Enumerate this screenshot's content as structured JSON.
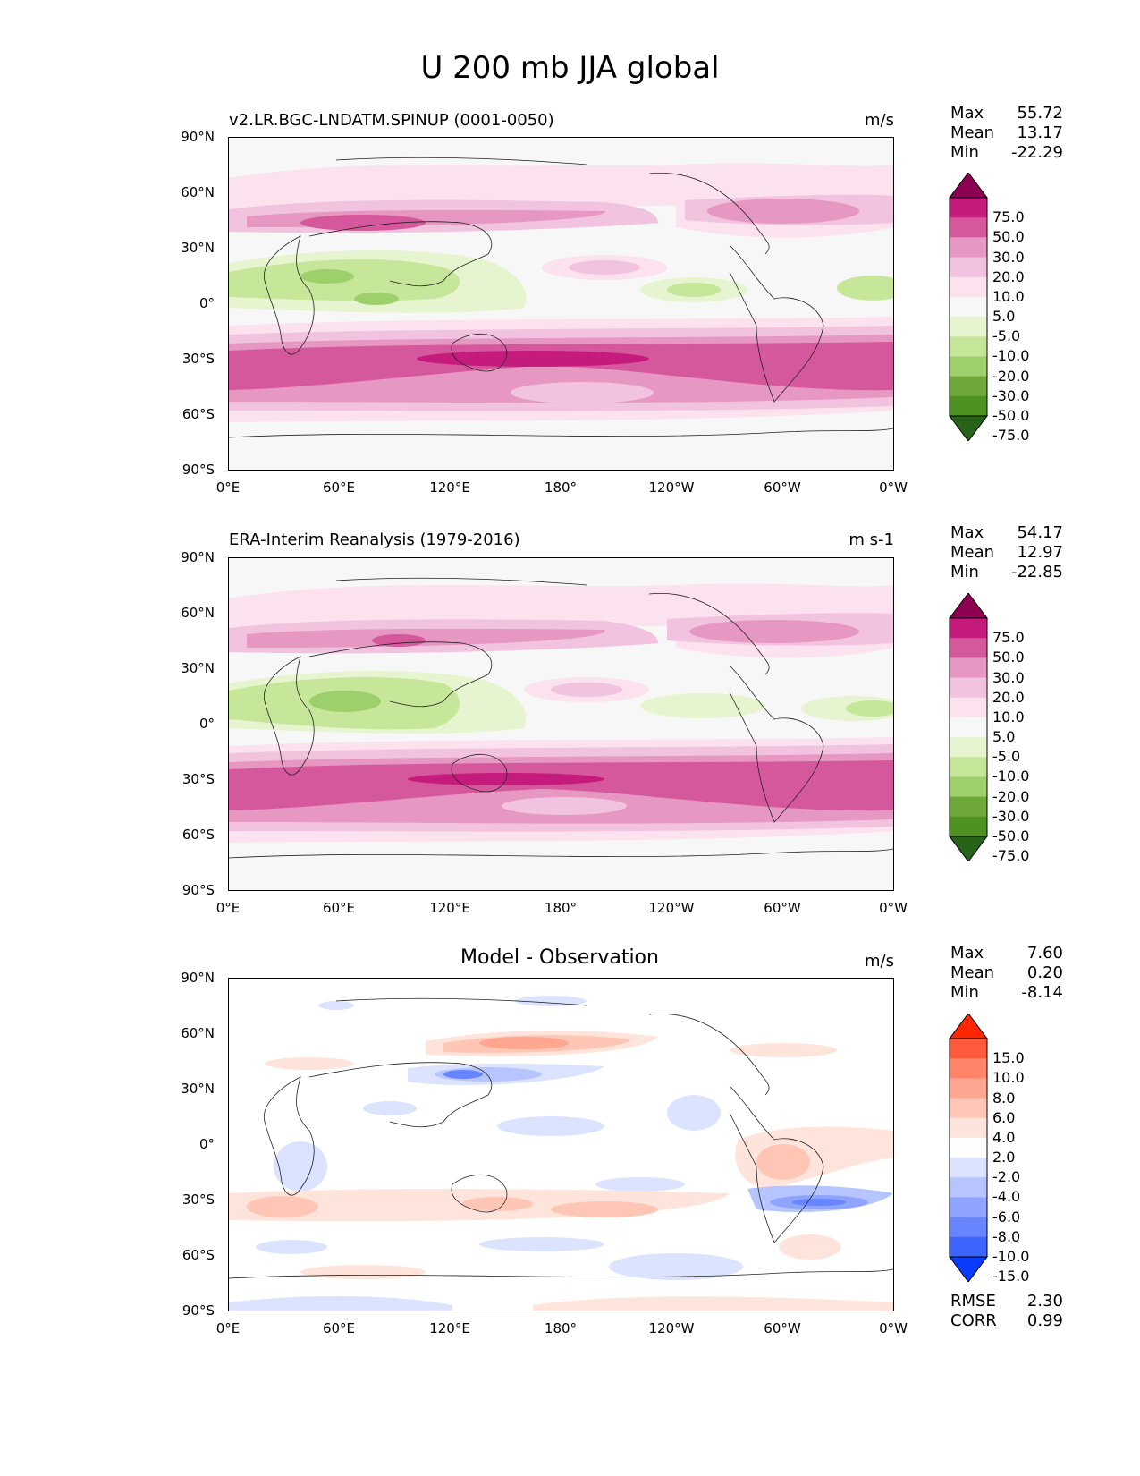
{
  "figure_title": "U 200 mb JJA global",
  "lat_ticks": [
    "90°N",
    "60°N",
    "30°N",
    "0°",
    "30°S",
    "60°S",
    "90°S"
  ],
  "lon_ticks": [
    "0°E",
    "60°E",
    "120°E",
    "180°",
    "120°W",
    "60°W",
    "0°W"
  ],
  "panels": [
    {
      "title": "v2.LR.BGC-LNDATM.SPINUP (0001-0050)",
      "units": "m/s",
      "stats": [
        {
          "label": "Max",
          "value": "55.72"
        },
        {
          "label": "Mean",
          "value": "13.17"
        },
        {
          "label": "Min",
          "value": "-22.29"
        }
      ],
      "colorbar": {
        "levels": [
          "75.0",
          "50.0",
          "30.0",
          "20.0",
          "10.0",
          "5.0",
          "-5.0",
          "-10.0",
          "-20.0",
          "-30.0",
          "-50.0",
          "-75.0"
        ],
        "colors": [
          "#8e0152",
          "#c51b7d",
          "#d6589c",
          "#e697c2",
          "#f2c3de",
          "#fbe2ee",
          "#f7f7f7",
          "#e6f4d0",
          "#c6e69a",
          "#9dd06a",
          "#6ea83a",
          "#4d9221",
          "#276419"
        ]
      }
    },
    {
      "title": "ERA-Interim Reanalysis (1979-2016)",
      "units": "m s-1",
      "stats": [
        {
          "label": "Max",
          "value": "54.17"
        },
        {
          "label": "Mean",
          "value": "12.97"
        },
        {
          "label": "Min",
          "value": "-22.85"
        }
      ],
      "colorbar": {
        "levels": [
          "75.0",
          "50.0",
          "30.0",
          "20.0",
          "10.0",
          "5.0",
          "-5.0",
          "-10.0",
          "-20.0",
          "-30.0",
          "-50.0",
          "-75.0"
        ],
        "colors": [
          "#8e0152",
          "#c51b7d",
          "#d6589c",
          "#e697c2",
          "#f2c3de",
          "#fbe2ee",
          "#f7f7f7",
          "#e6f4d0",
          "#c6e69a",
          "#9dd06a",
          "#6ea83a",
          "#4d9221",
          "#276419"
        ]
      }
    },
    {
      "title": "Model - Observation",
      "units": "m/s",
      "stats": [
        {
          "label": "Max",
          "value": "7.60"
        },
        {
          "label": "Mean",
          "value": "0.20"
        },
        {
          "label": "Min",
          "value": "-8.14"
        }
      ],
      "extra_stats": [
        {
          "label": "RMSE",
          "value": "2.30"
        },
        {
          "label": "CORR",
          "value": "0.99"
        }
      ],
      "colorbar": {
        "levels": [
          "15.0",
          "10.0",
          "8.0",
          "6.0",
          "4.0",
          "2.0",
          "-2.0",
          "-4.0",
          "-6.0",
          "-8.0",
          "-10.0",
          "-15.0"
        ],
        "colors": [
          "#ff2600",
          "#ff5a3c",
          "#ff8468",
          "#ffa690",
          "#ffc6b6",
          "#ffe4dc",
          "#ffffff",
          "#dce3ff",
          "#b6c4ff",
          "#8ea4ff",
          "#6685ff",
          "#3e64ff",
          "#0a3cff"
        ]
      }
    }
  ]
}
